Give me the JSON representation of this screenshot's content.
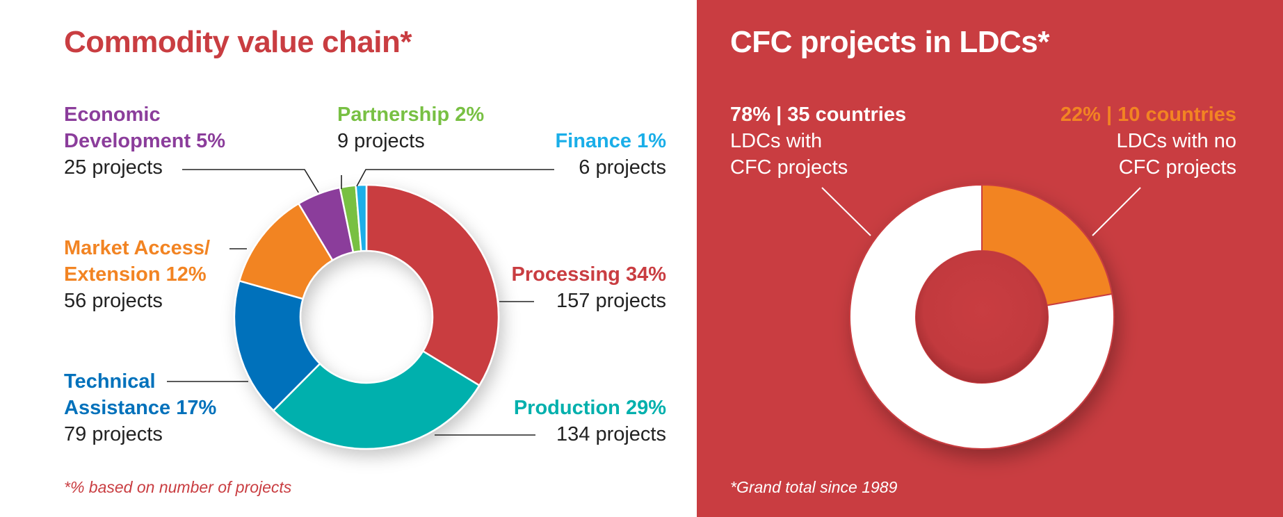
{
  "left": {
    "title": "Commodity value chain*",
    "footnote": "*% based on number of projects"
  },
  "right": {
    "title": "CFC projects in LDCs*",
    "footnote": "*Grand total since 1989",
    "with": {
      "head": "78% | 35 countries",
      "line1": "LDCs with",
      "line2": "CFC projects"
    },
    "without": {
      "head": "22% | 10 countries",
      "line1": "LDCs with no",
      "line2": "CFC projects"
    }
  },
  "chart_data": [
    {
      "type": "pie",
      "title": "Commodity value chain*",
      "slices": [
        {
          "label": "Processing 34%",
          "percent": 34,
          "count": "157 projects",
          "value": 157,
          "color": "#c93d41"
        },
        {
          "label": "Production 29%",
          "percent": 29,
          "count": "134 projects",
          "value": 134,
          "color": "#00b0ad"
        },
        {
          "label": "Technical Assistance 17%",
          "label_line1": "Technical",
          "label_line2": "Assistance 17%",
          "percent": 17,
          "count": "79 projects",
          "value": 79,
          "color": "#0071bb"
        },
        {
          "label": "Market Access/ Extension 12%",
          "label_line1": "Market Access/",
          "label_line2": "Extension 12%",
          "percent": 12,
          "count": "56 projects",
          "value": 56,
          "color": "#f28423"
        },
        {
          "label": "Economic Development 5%",
          "label_line1": "Economic",
          "label_line2": "Development 5%",
          "percent": 5,
          "count": "25 projects",
          "value": 25,
          "color": "#8b3d9b"
        },
        {
          "label": "Partnership 2%",
          "percent": 2,
          "count": "9 projects",
          "value": 9,
          "color": "#78c043"
        },
        {
          "label": "Finance 1%",
          "percent": 1,
          "count": "6 projects",
          "value": 6,
          "color": "#1aaee8"
        }
      ]
    },
    {
      "type": "pie",
      "title": "CFC projects in LDCs*",
      "slices": [
        {
          "label": "LDCs with no CFC projects",
          "percent": 22,
          "value": 10,
          "color": "#f28423"
        },
        {
          "label": "LDCs with CFC projects",
          "percent": 78,
          "value": 35,
          "color": "#ffffff"
        }
      ]
    }
  ]
}
